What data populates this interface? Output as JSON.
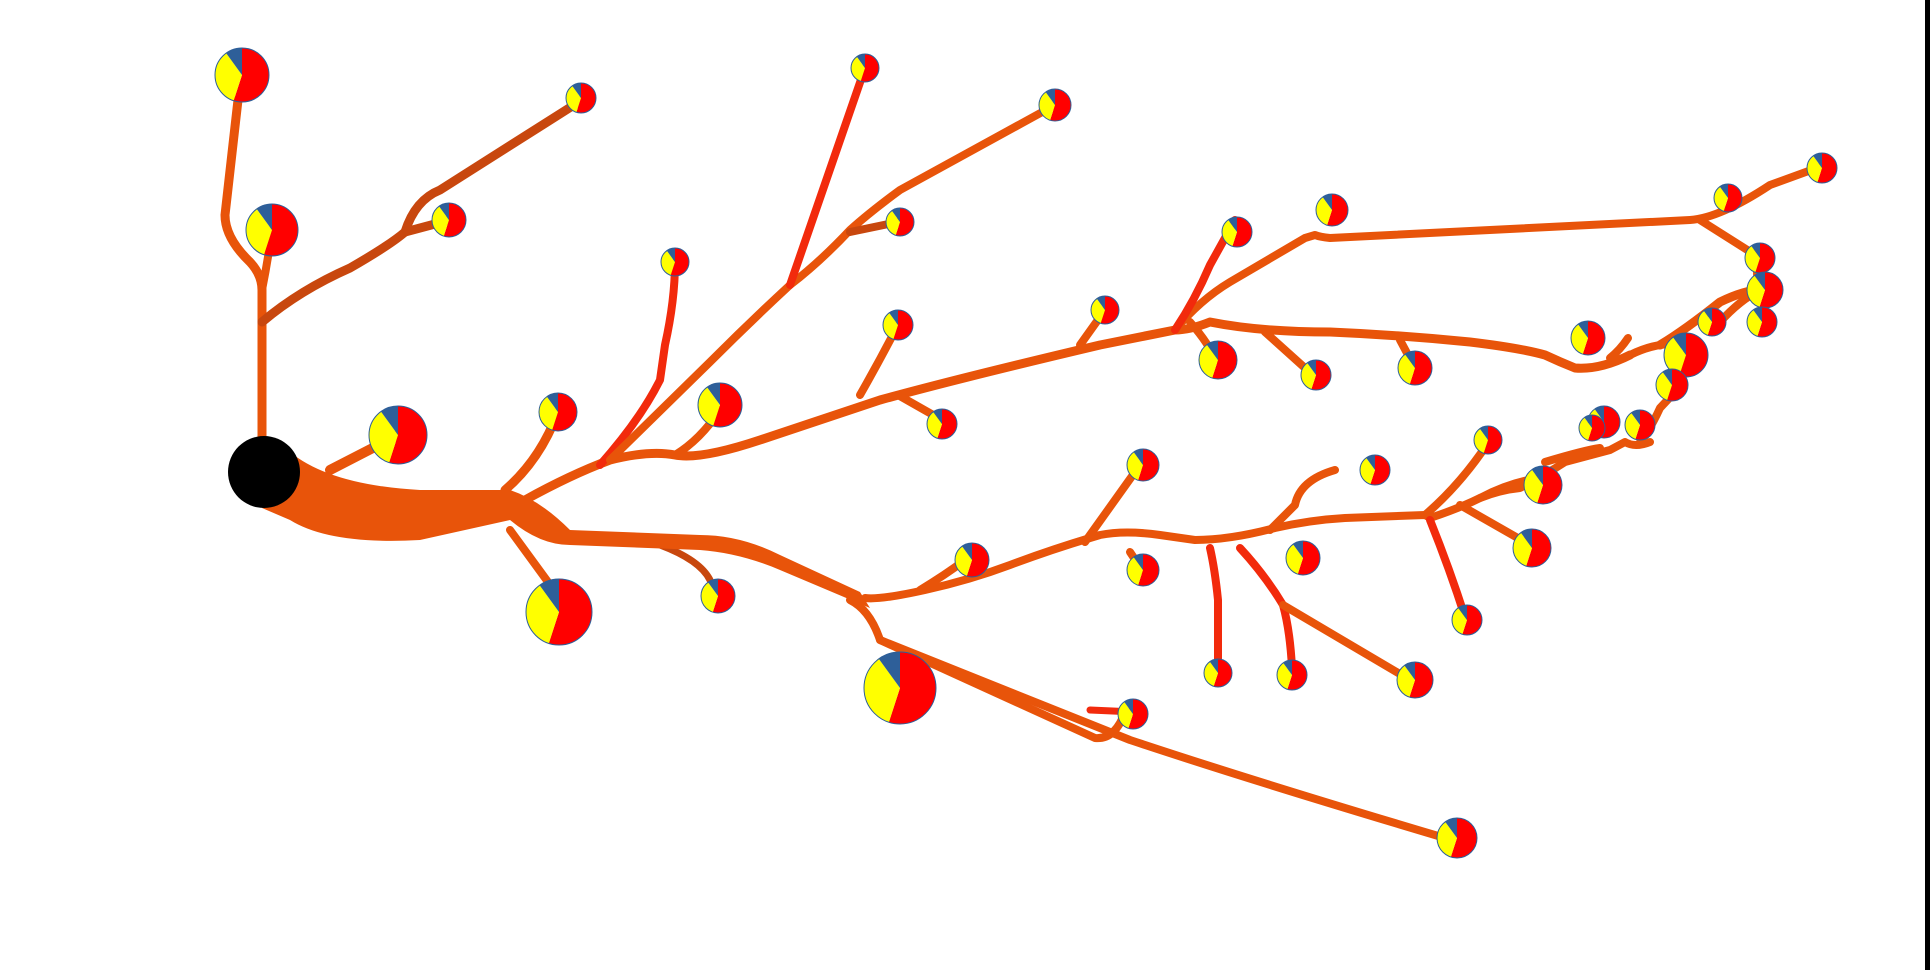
{
  "colors": {
    "background": "#ffffff",
    "root_node": "#000000",
    "branch_main": "#e8540a",
    "branch_alt": "#f22a0c",
    "branch_brown": "#c8470e",
    "pie_red": "#ff0000",
    "pie_yellow": "#ffff00",
    "pie_blue": "#2e5f99",
    "frame_edge": "#000000"
  },
  "pie_fractions": {
    "red": 0.55,
    "yellow": 0.35,
    "blue": 0.1
  }
}
